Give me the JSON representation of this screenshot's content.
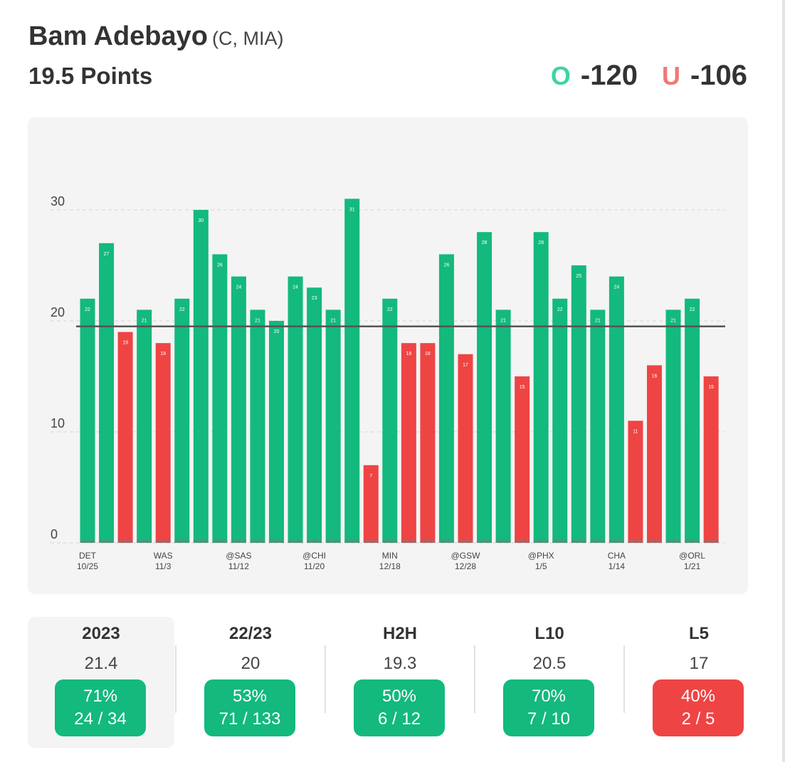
{
  "header": {
    "player_name": "Bam Adebayo",
    "player_meta": "(C, MIA)",
    "prop_line": "19.5 Points",
    "over_letter": "O",
    "over_odds": "-120",
    "under_letter": "U",
    "under_odds": "-106",
    "over_color": "#3fd4a0",
    "under_color": "#f07878"
  },
  "chart_data": {
    "type": "bar",
    "line": 19.5,
    "ylim": [
      0,
      31
    ],
    "yticks": [
      0,
      10,
      20,
      30
    ],
    "grid": true,
    "colors": {
      "over": "#13b97d",
      "under": "#ef4444",
      "line": "#555555"
    },
    "values": [
      22,
      27,
      19,
      21,
      18,
      22,
      30,
      26,
      24,
      21,
      20,
      24,
      23,
      21,
      31,
      7,
      22,
      18,
      18,
      26,
      17,
      28,
      21,
      15,
      28,
      22,
      25,
      21,
      24,
      11,
      16,
      21,
      22,
      15
    ],
    "x_labels": [
      {
        "index": 0,
        "opponent": "DET",
        "date": "10/25"
      },
      {
        "index": 4,
        "opponent": "WAS",
        "date": "11/3"
      },
      {
        "index": 8,
        "opponent": "@SAS",
        "date": "11/12"
      },
      {
        "index": 12,
        "opponent": "@CHI",
        "date": "11/20"
      },
      {
        "index": 16,
        "opponent": "MIN",
        "date": "12/18"
      },
      {
        "index": 20,
        "opponent": "@GSW",
        "date": "12/28"
      },
      {
        "index": 24,
        "opponent": "@PHX",
        "date": "1/5"
      },
      {
        "index": 28,
        "opponent": "CHA",
        "date": "1/14"
      },
      {
        "index": 32,
        "opponent": "@ORL",
        "date": "1/21"
      }
    ]
  },
  "stats": [
    {
      "label": "2023",
      "avg": "21.4",
      "pct": "71%",
      "record": "24 / 34",
      "status": "green",
      "active": true
    },
    {
      "label": "22/23",
      "avg": "20",
      "pct": "53%",
      "record": "71 / 133",
      "status": "green",
      "active": false
    },
    {
      "label": "H2H",
      "avg": "19.3",
      "pct": "50%",
      "record": "6 / 12",
      "status": "green",
      "active": false
    },
    {
      "label": "L10",
      "avg": "20.5",
      "pct": "70%",
      "record": "7 / 10",
      "status": "green",
      "active": false
    },
    {
      "label": "L5",
      "avg": "17",
      "pct": "40%",
      "record": "2 / 5",
      "status": "red",
      "active": false
    }
  ]
}
